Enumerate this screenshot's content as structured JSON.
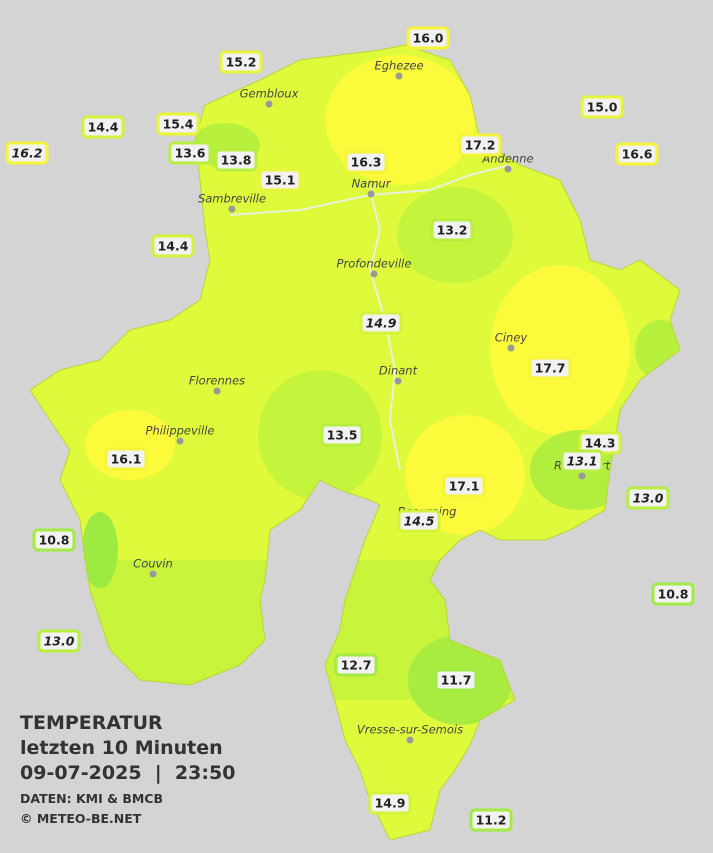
{
  "title": {
    "lines": [
      "TEMPERATUR",
      "letzten 10 Minuten",
      "09-07-2025  |  23:50"
    ],
    "credits": [
      "DATEN: KMI & BMCB",
      "© METEO-BE.NET"
    ]
  },
  "cities": [
    {
      "name": "Eghezee"
    },
    {
      "name": "Gembloux"
    },
    {
      "name": "Andenne"
    },
    {
      "name": "Namur"
    },
    {
      "name": "Sambreville"
    },
    {
      "name": "Profondeville"
    },
    {
      "name": "Ciney"
    },
    {
      "name": "Dinant"
    },
    {
      "name": "Florennes"
    },
    {
      "name": "Philippeville"
    },
    {
      "name": "Rochefort"
    },
    {
      "name": "Beauraing"
    },
    {
      "name": "Couvin"
    },
    {
      "name": "Vresse-sur-Semois"
    }
  ],
  "stations": [
    {
      "label": "16.0"
    },
    {
      "label": "15.2"
    },
    {
      "label": "14.4"
    },
    {
      "label": "15.4"
    },
    {
      "label": "16.2"
    },
    {
      "label": "13.6"
    },
    {
      "label": "13.8"
    },
    {
      "label": "15.1"
    },
    {
      "label": "16.3"
    },
    {
      "label": "17.2"
    },
    {
      "label": "15.0"
    },
    {
      "label": "16.6"
    },
    {
      "label": "13.2"
    },
    {
      "label": "14.4"
    },
    {
      "label": "14.9"
    },
    {
      "label": "17.7"
    },
    {
      "label": "13.5"
    },
    {
      "label": "16.1"
    },
    {
      "label": "14.3"
    },
    {
      "label": "13.1"
    },
    {
      "label": "17.1"
    },
    {
      "label": "13.0"
    },
    {
      "label": "14.5"
    },
    {
      "label": "10.8"
    },
    {
      "label": "10.8"
    },
    {
      "label": "13.0"
    },
    {
      "label": "12.7"
    },
    {
      "label": "11.7"
    },
    {
      "label": "14.9"
    },
    {
      "label": "11.2"
    }
  ]
}
